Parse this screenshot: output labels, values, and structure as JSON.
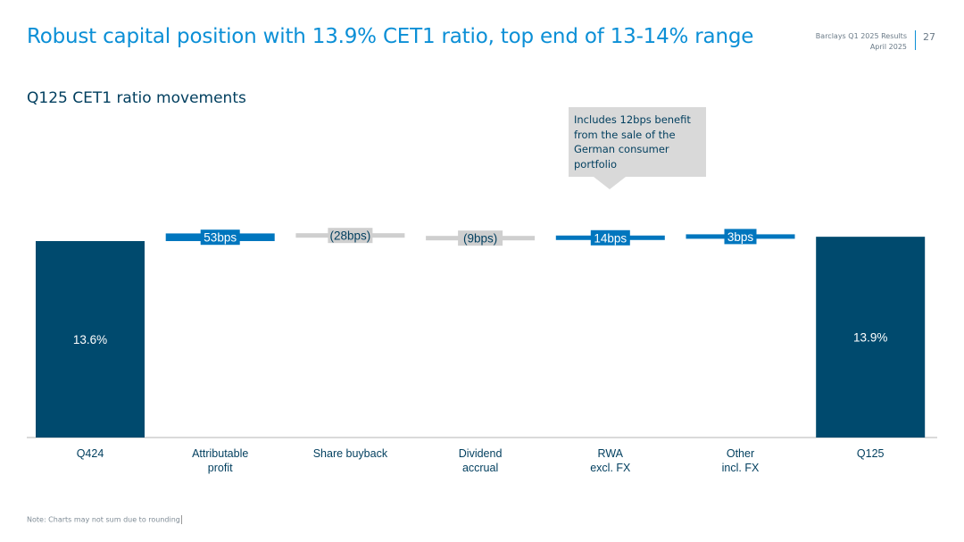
{
  "header": {
    "title": "Robust capital position with 13.9% CET1 ratio, top end of 13-14% range",
    "report_name": "Barclays Q1 2025 Results",
    "report_date": "April 2025",
    "page_number": "27"
  },
  "subtitle": "Q125 CET1 ratio movements",
  "callout": "Includes 12bps benefit from the sale of the German consumer portfolio",
  "footnote": "Note: Charts may not sum due to rounding",
  "colors": {
    "total": "#004a6e",
    "increase": "#0076be",
    "decrease": "#cfcfcf",
    "title": "#0b8fd6",
    "label_dark": "#003e5e"
  },
  "chart_data": {
    "type": "bar",
    "subtype": "waterfall",
    "title": "Q125 CET1 ratio movements",
    "unit": "%",
    "categories": [
      "Q424",
      "Attributable\nprofit",
      "Share buyback",
      "Dividend\naccrual",
      "RWA\nexcl. FX",
      "Other\nincl. FX",
      "Q125"
    ],
    "values": [
      13.6,
      0.53,
      -0.28,
      -0.09,
      0.14,
      0.03,
      13.9
    ],
    "kinds": [
      "total",
      "increase",
      "decrease",
      "decrease",
      "increase",
      "increase",
      "total"
    ],
    "data_labels": [
      "13.6%",
      "53bps",
      "(28bps)",
      "(9bps)",
      "14bps",
      "3bps",
      "13.9%"
    ],
    "grid": false,
    "legend": "none"
  }
}
